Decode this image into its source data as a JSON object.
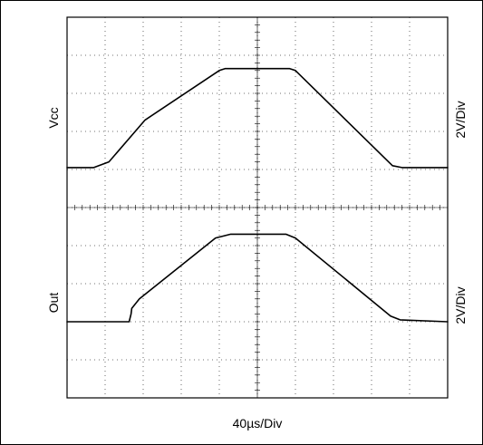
{
  "chart_data": {
    "type": "line",
    "grid": true,
    "xlabel": "40µs/Div",
    "xlim": [
      0,
      10
    ],
    "channels": [
      {
        "label": "Vcc",
        "scale_label": "2V/Div",
        "ylim": [
          0,
          5
        ],
        "values": [
          [
            0,
            1.05
          ],
          [
            0.7,
            1.05
          ],
          [
            1.1,
            1.2
          ],
          [
            2.05,
            2.3
          ],
          [
            4.0,
            3.6
          ],
          [
            4.15,
            3.65
          ],
          [
            5.85,
            3.65
          ],
          [
            6.0,
            3.6
          ],
          [
            8.55,
            1.1
          ],
          [
            8.8,
            1.05
          ],
          [
            10,
            1.05
          ]
        ]
      },
      {
        "label": "Out",
        "scale_label": "2V/Div",
        "ylim": [
          0,
          5
        ],
        "values": [
          [
            0,
            2.0
          ],
          [
            1.5,
            2.0
          ],
          [
            1.63,
            2.0
          ],
          [
            1.68,
            2.2
          ],
          [
            1.7,
            2.35
          ],
          [
            1.9,
            2.6
          ],
          [
            3.9,
            4.2
          ],
          [
            4.3,
            4.3
          ],
          [
            5.75,
            4.3
          ],
          [
            6.0,
            4.2
          ],
          [
            8.5,
            2.15
          ],
          [
            8.75,
            2.05
          ],
          [
            10,
            2.0
          ]
        ]
      }
    ]
  }
}
